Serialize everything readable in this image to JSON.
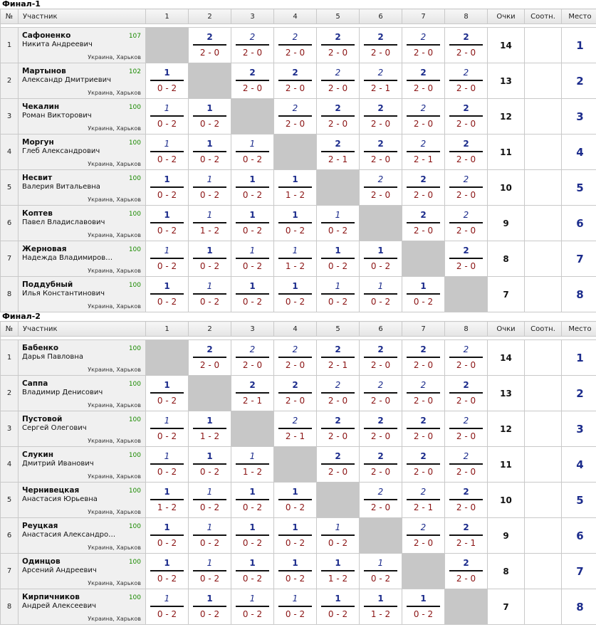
{
  "tables": [
    {
      "title": "Финал-1",
      "headers": {
        "no": "№",
        "participant": "Участник",
        "cols": [
          "1",
          "2",
          "3",
          "4",
          "5",
          "6",
          "7",
          "8"
        ],
        "points": "Очки",
        "ratio": "Соотн.",
        "place": "Место"
      },
      "rows": [
        {
          "no": "1",
          "surname": "Сафоненко",
          "name": "Никита Андреевич",
          "rating": "107",
          "city": "Украина, Харьков",
          "points": "14",
          "ratio": "",
          "place": "1",
          "cells": [
            null,
            {
              "v": "2",
              "s": "2 - 0",
              "b": true
            },
            {
              "v": "2",
              "s": "2 - 0",
              "b": false
            },
            {
              "v": "2",
              "s": "2 - 0",
              "b": false
            },
            {
              "v": "2",
              "s": "2 - 0",
              "b": true
            },
            {
              "v": "2",
              "s": "2 - 0",
              "b": true
            },
            {
              "v": "2",
              "s": "2 - 0",
              "b": false
            },
            {
              "v": "2",
              "s": "2 - 0",
              "b": true
            }
          ]
        },
        {
          "no": "2",
          "surname": "Мартынов",
          "name": "Александр Дмитриевич",
          "rating": "102",
          "city": "Украина, Харьков",
          "points": "13",
          "ratio": "",
          "place": "2",
          "cells": [
            {
              "v": "1",
              "s": "0 - 2",
              "b": true
            },
            null,
            {
              "v": "2",
              "s": "2 - 0",
              "b": true
            },
            {
              "v": "2",
              "s": "2 - 0",
              "b": true
            },
            {
              "v": "2",
              "s": "2 - 0",
              "b": false
            },
            {
              "v": "2",
              "s": "2 - 1",
              "b": false
            },
            {
              "v": "2",
              "s": "2 - 0",
              "b": true
            },
            {
              "v": "2",
              "s": "2 - 0",
              "b": false
            }
          ]
        },
        {
          "no": "3",
          "surname": "Чекалин",
          "name": "Роман Викторович",
          "rating": "100",
          "city": "Украина, Харьков",
          "points": "12",
          "ratio": "",
          "place": "3",
          "cells": [
            {
              "v": "1",
              "s": "0 - 2",
              "b": false
            },
            {
              "v": "1",
              "s": "0 - 2",
              "b": true
            },
            null,
            {
              "v": "2",
              "s": "2 - 0",
              "b": false
            },
            {
              "v": "2",
              "s": "2 - 0",
              "b": true
            },
            {
              "v": "2",
              "s": "2 - 0",
              "b": true
            },
            {
              "v": "2",
              "s": "2 - 0",
              "b": false
            },
            {
              "v": "2",
              "s": "2 - 0",
              "b": true
            }
          ]
        },
        {
          "no": "4",
          "surname": "Моргун",
          "name": "Глеб Александрович",
          "rating": "100",
          "city": "Украина, Харьков",
          "points": "11",
          "ratio": "",
          "place": "4",
          "cells": [
            {
              "v": "1",
              "s": "0 - 2",
              "b": false
            },
            {
              "v": "1",
              "s": "0 - 2",
              "b": true
            },
            {
              "v": "1",
              "s": "0 - 2",
              "b": false
            },
            null,
            {
              "v": "2",
              "s": "2 - 1",
              "b": true
            },
            {
              "v": "2",
              "s": "2 - 0",
              "b": true
            },
            {
              "v": "2",
              "s": "2 - 1",
              "b": false
            },
            {
              "v": "2",
              "s": "2 - 0",
              "b": true
            }
          ]
        },
        {
          "no": "5",
          "surname": "Несвит",
          "name": "Валерия Витальевна",
          "rating": "100",
          "city": "Украина, Харьков",
          "points": "10",
          "ratio": "",
          "place": "5",
          "cells": [
            {
              "v": "1",
              "s": "0 - 2",
              "b": true
            },
            {
              "v": "1",
              "s": "0 - 2",
              "b": false
            },
            {
              "v": "1",
              "s": "0 - 2",
              "b": true
            },
            {
              "v": "1",
              "s": "1 - 2",
              "b": true
            },
            null,
            {
              "v": "2",
              "s": "2 - 0",
              "b": false
            },
            {
              "v": "2",
              "s": "2 - 0",
              "b": true
            },
            {
              "v": "2",
              "s": "2 - 0",
              "b": false
            }
          ]
        },
        {
          "no": "6",
          "surname": "Коптев",
          "name": "Павел Владиславович",
          "rating": "100",
          "city": "Украина, Харьков",
          "points": "9",
          "ratio": "",
          "place": "6",
          "cells": [
            {
              "v": "1",
              "s": "0 - 2",
              "b": true
            },
            {
              "v": "1",
              "s": "1 - 2",
              "b": false
            },
            {
              "v": "1",
              "s": "0 - 2",
              "b": true
            },
            {
              "v": "1",
              "s": "0 - 2",
              "b": true
            },
            {
              "v": "1",
              "s": "0 - 2",
              "b": false
            },
            null,
            {
              "v": "2",
              "s": "2 - 0",
              "b": true
            },
            {
              "v": "2",
              "s": "2 - 0",
              "b": false
            }
          ]
        },
        {
          "no": "7",
          "surname": "Жерновая",
          "name": "Надежда Владимиров…",
          "rating": "100",
          "city": "Украина, Харьков",
          "points": "8",
          "ratio": "",
          "place": "7",
          "cells": [
            {
              "v": "1",
              "s": "0 - 2",
              "b": false
            },
            {
              "v": "1",
              "s": "0 - 2",
              "b": true
            },
            {
              "v": "1",
              "s": "0 - 2",
              "b": false
            },
            {
              "v": "1",
              "s": "1 - 2",
              "b": false
            },
            {
              "v": "1",
              "s": "0 - 2",
              "b": true
            },
            {
              "v": "1",
              "s": "0 - 2",
              "b": true
            },
            null,
            {
              "v": "2",
              "s": "2 - 0",
              "b": true
            }
          ]
        },
        {
          "no": "8",
          "surname": "Поддубный",
          "name": "Илья Константинович",
          "rating": "100",
          "city": "Украина, Харьков",
          "points": "7",
          "ratio": "",
          "place": "8",
          "cells": [
            {
              "v": "1",
              "s": "0 - 2",
              "b": true
            },
            {
              "v": "1",
              "s": "0 - 2",
              "b": false
            },
            {
              "v": "1",
              "s": "0 - 2",
              "b": true
            },
            {
              "v": "1",
              "s": "0 - 2",
              "b": true
            },
            {
              "v": "1",
              "s": "0 - 2",
              "b": false
            },
            {
              "v": "1",
              "s": "0 - 2",
              "b": false
            },
            {
              "v": "1",
              "s": "0 - 2",
              "b": true
            },
            null
          ]
        }
      ]
    },
    {
      "title": "Финал-2",
      "headers": {
        "no": "№",
        "participant": "Участник",
        "cols": [
          "1",
          "2",
          "3",
          "4",
          "5",
          "6",
          "7",
          "8"
        ],
        "points": "Очки",
        "ratio": "Соотн.",
        "place": "Место"
      },
      "rows": [
        {
          "no": "1",
          "surname": "Бабенко",
          "name": "Дарья Павловна",
          "rating": "100",
          "city": "Украина, Харьков",
          "points": "14",
          "ratio": "",
          "place": "1",
          "cells": [
            null,
            {
              "v": "2",
              "s": "2 - 0",
              "b": true
            },
            {
              "v": "2",
              "s": "2 - 0",
              "b": false
            },
            {
              "v": "2",
              "s": "2 - 0",
              "b": false
            },
            {
              "v": "2",
              "s": "2 - 1",
              "b": true
            },
            {
              "v": "2",
              "s": "2 - 0",
              "b": true
            },
            {
              "v": "2",
              "s": "2 - 0",
              "b": true
            },
            {
              "v": "2",
              "s": "2 - 0",
              "b": false
            }
          ]
        },
        {
          "no": "2",
          "surname": "Саппа",
          "name": "Владимир Денисович",
          "rating": "100",
          "city": "Украина, Харьков",
          "points": "13",
          "ratio": "",
          "place": "2",
          "cells": [
            {
              "v": "1",
              "s": "0 - 2",
              "b": true
            },
            null,
            {
              "v": "2",
              "s": "2 - 1",
              "b": true
            },
            {
              "v": "2",
              "s": "2 - 0",
              "b": true
            },
            {
              "v": "2",
              "s": "2 - 0",
              "b": false
            },
            {
              "v": "2",
              "s": "2 - 0",
              "b": false
            },
            {
              "v": "2",
              "s": "2 - 0",
              "b": false
            },
            {
              "v": "2",
              "s": "2 - 0",
              "b": true
            }
          ]
        },
        {
          "no": "3",
          "surname": "Пустовой",
          "name": "Сергей Олегович",
          "rating": "100",
          "city": "Украина, Харьков",
          "points": "12",
          "ratio": "",
          "place": "3",
          "cells": [
            {
              "v": "1",
              "s": "0 - 2",
              "b": false
            },
            {
              "v": "1",
              "s": "1 - 2",
              "b": true
            },
            null,
            {
              "v": "2",
              "s": "2 - 1",
              "b": false
            },
            {
              "v": "2",
              "s": "2 - 0",
              "b": true
            },
            {
              "v": "2",
              "s": "2 - 0",
              "b": true
            },
            {
              "v": "2",
              "s": "2 - 0",
              "b": true
            },
            {
              "v": "2",
              "s": "2 - 0",
              "b": false
            }
          ]
        },
        {
          "no": "4",
          "surname": "Слукин",
          "name": "Дмитрий Иванович",
          "rating": "100",
          "city": "Украина, Харьков",
          "points": "11",
          "ratio": "",
          "place": "4",
          "cells": [
            {
              "v": "1",
              "s": "0 - 2",
              "b": false
            },
            {
              "v": "1",
              "s": "0 - 2",
              "b": true
            },
            {
              "v": "1",
              "s": "1 - 2",
              "b": false
            },
            null,
            {
              "v": "2",
              "s": "2 - 0",
              "b": true
            },
            {
              "v": "2",
              "s": "2 - 0",
              "b": true
            },
            {
              "v": "2",
              "s": "2 - 0",
              "b": true
            },
            {
              "v": "2",
              "s": "2 - 0",
              "b": false
            }
          ]
        },
        {
          "no": "5",
          "surname": "Чернивецкая",
          "name": "Анастасия Юрьевна",
          "rating": "100",
          "city": "Украина, Харьков",
          "points": "10",
          "ratio": "",
          "place": "5",
          "cells": [
            {
              "v": "1",
              "s": "1 - 2",
              "b": true
            },
            {
              "v": "1",
              "s": "0 - 2",
              "b": false
            },
            {
              "v": "1",
              "s": "0 - 2",
              "b": true
            },
            {
              "v": "1",
              "s": "0 - 2",
              "b": true
            },
            null,
            {
              "v": "2",
              "s": "2 - 0",
              "b": false
            },
            {
              "v": "2",
              "s": "2 - 1",
              "b": false
            },
            {
              "v": "2",
              "s": "2 - 0",
              "b": true
            }
          ]
        },
        {
          "no": "6",
          "surname": "Реуцкая",
          "name": "Анастасия Александро…",
          "rating": "100",
          "city": "Украина, Харьков",
          "points": "9",
          "ratio": "",
          "place": "6",
          "cells": [
            {
              "v": "1",
              "s": "0 - 2",
              "b": true
            },
            {
              "v": "1",
              "s": "0 - 2",
              "b": false
            },
            {
              "v": "1",
              "s": "0 - 2",
              "b": true
            },
            {
              "v": "1",
              "s": "0 - 2",
              "b": true
            },
            {
              "v": "1",
              "s": "0 - 2",
              "b": false
            },
            null,
            {
              "v": "2",
              "s": "2 - 0",
              "b": false
            },
            {
              "v": "2",
              "s": "2 - 1",
              "b": true
            }
          ]
        },
        {
          "no": "7",
          "surname": "Одинцов",
          "name": "Арсений Андреевич",
          "rating": "100",
          "city": "Украина, Харьков",
          "points": "8",
          "ratio": "",
          "place": "7",
          "cells": [
            {
              "v": "1",
              "s": "0 - 2",
              "b": true
            },
            {
              "v": "1",
              "s": "0 - 2",
              "b": false
            },
            {
              "v": "1",
              "s": "0 - 2",
              "b": true
            },
            {
              "v": "1",
              "s": "0 - 2",
              "b": true
            },
            {
              "v": "1",
              "s": "1 - 2",
              "b": true
            },
            {
              "v": "1",
              "s": "0 - 2",
              "b": false
            },
            null,
            {
              "v": "2",
              "s": "2 - 0",
              "b": true
            }
          ]
        },
        {
          "no": "8",
          "surname": "Кирпичников",
          "name": "Андрей Алексеевич",
          "rating": "100",
          "city": "Украина, Харьков",
          "points": "7",
          "ratio": "",
          "place": "8",
          "cells": [
            {
              "v": "1",
              "s": "0 - 2",
              "b": false
            },
            {
              "v": "1",
              "s": "0 - 2",
              "b": true
            },
            {
              "v": "1",
              "s": "0 - 2",
              "b": false
            },
            {
              "v": "1",
              "s": "0 - 2",
              "b": false
            },
            {
              "v": "1",
              "s": "0 - 2",
              "b": true
            },
            {
              "v": "1",
              "s": "1 - 2",
              "b": true
            },
            {
              "v": "1",
              "s": "0 - 2",
              "b": true
            },
            null
          ]
        }
      ]
    }
  ],
  "colors": {
    "accent": "#1c2c8c",
    "score": "#8b1414",
    "rating": "#1a8a00",
    "self_cell": "#c7c7c7",
    "name_cell": "#f0f0f0"
  }
}
